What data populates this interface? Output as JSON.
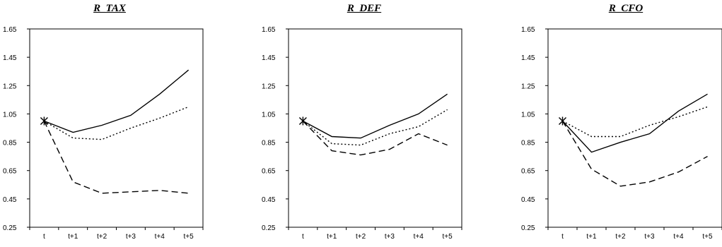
{
  "chart_data": [
    {
      "type": "line",
      "title": "R_TAX",
      "categories": [
        "t",
        "t+1",
        "t+2",
        "t+3",
        "t+4",
        "t+5"
      ],
      "ylim": [
        0.25,
        1.65
      ],
      "yticks": [
        "0.25",
        "0.45",
        "0.65",
        "0.85",
        "1.05",
        "1.25",
        "1.45",
        "1.65"
      ],
      "grid": false,
      "series": [
        {
          "style": "solid",
          "values": [
            1.0,
            0.92,
            0.97,
            1.04,
            1.19,
            1.36
          ]
        },
        {
          "style": "dotted",
          "values": [
            1.0,
            0.88,
            0.87,
            0.95,
            1.02,
            1.1
          ]
        },
        {
          "style": "dashed",
          "values": [
            1.0,
            0.57,
            0.49,
            0.5,
            0.51,
            0.49
          ]
        }
      ]
    },
    {
      "type": "line",
      "title": "R_DEF",
      "categories": [
        "t",
        "t+1",
        "t+2",
        "t+3",
        "t+4",
        "t+5"
      ],
      "ylim": [
        0.25,
        1.65
      ],
      "yticks": [
        "0.25",
        "0.45",
        "0.65",
        "0.85",
        "1.05",
        "1.25",
        "1.45",
        "1.65"
      ],
      "grid": false,
      "series": [
        {
          "style": "solid",
          "values": [
            1.0,
            0.89,
            0.88,
            0.97,
            1.05,
            1.19
          ]
        },
        {
          "style": "dotted",
          "values": [
            1.0,
            0.84,
            0.83,
            0.91,
            0.96,
            1.08
          ]
        },
        {
          "style": "dashed",
          "values": [
            1.0,
            0.79,
            0.76,
            0.8,
            0.91,
            0.83
          ]
        }
      ]
    },
    {
      "type": "line",
      "title": "R_CFO",
      "categories": [
        "t",
        "t+1",
        "t+2",
        "t+3",
        "t+4",
        "t+5"
      ],
      "ylim": [
        0.25,
        1.65
      ],
      "yticks": [
        "0.25",
        "0.45",
        "0.65",
        "0.85",
        "1.05",
        "1.25",
        "1.45",
        "1.65"
      ],
      "grid": false,
      "series": [
        {
          "style": "solid",
          "values": [
            1.0,
            0.78,
            0.85,
            0.91,
            1.07,
            1.19
          ]
        },
        {
          "style": "dotted",
          "values": [
            1.0,
            0.89,
            0.89,
            0.97,
            1.03,
            1.1
          ]
        },
        {
          "style": "dashed",
          "values": [
            1.0,
            0.66,
            0.54,
            0.57,
            0.64,
            0.75
          ]
        }
      ]
    }
  ]
}
